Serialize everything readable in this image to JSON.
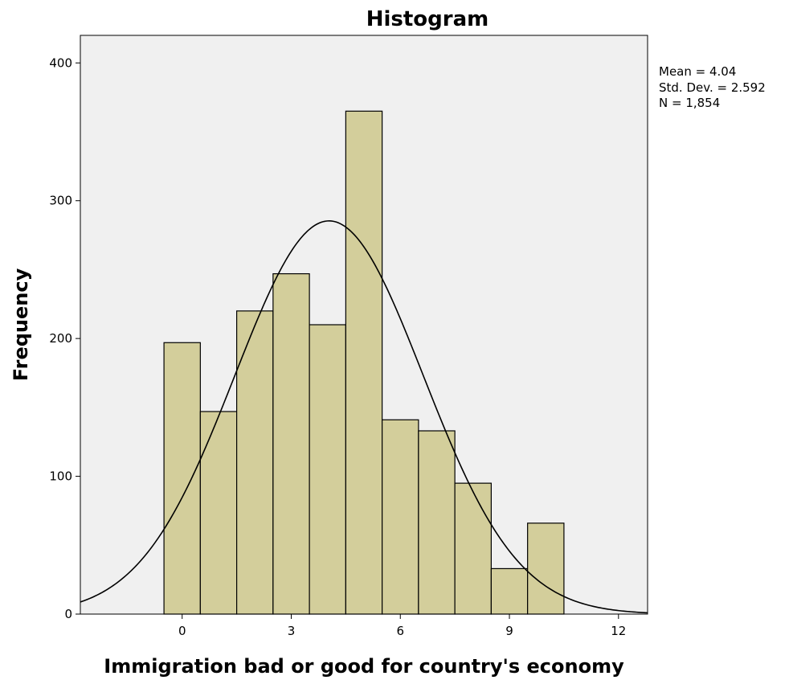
{
  "chart_data": {
    "type": "bar",
    "title": "Histogram",
    "xlabel": "Immigration bad or good for country's economy",
    "ylabel": "Frequency",
    "xlim": [
      -2.8,
      12.8
    ],
    "ylim": [
      0,
      420
    ],
    "x_ticks": [
      0,
      3,
      6,
      9,
      12
    ],
    "y_ticks": [
      0,
      100,
      200,
      300,
      400
    ],
    "categories": [
      "0",
      "1",
      "2",
      "3",
      "4",
      "5",
      "6",
      "7",
      "8",
      "9",
      "10"
    ],
    "values": [
      197,
      147,
      220,
      247,
      210,
      365,
      141,
      133,
      95,
      33,
      66
    ],
    "bin_width": 1,
    "normal_curve": {
      "mean": 4.04,
      "std_dev": 2.592,
      "n": 1854
    },
    "stats": {
      "mean": "Mean = 4.04",
      "std_dev": "Std. Dev. = 2.592",
      "n": "N = 1,854"
    },
    "grid": false,
    "colors": {
      "bar_fill": "#d3ce9b",
      "bar_stroke": "#000000",
      "plot_background": "#f0f0f0",
      "curve": "#000000"
    }
  }
}
